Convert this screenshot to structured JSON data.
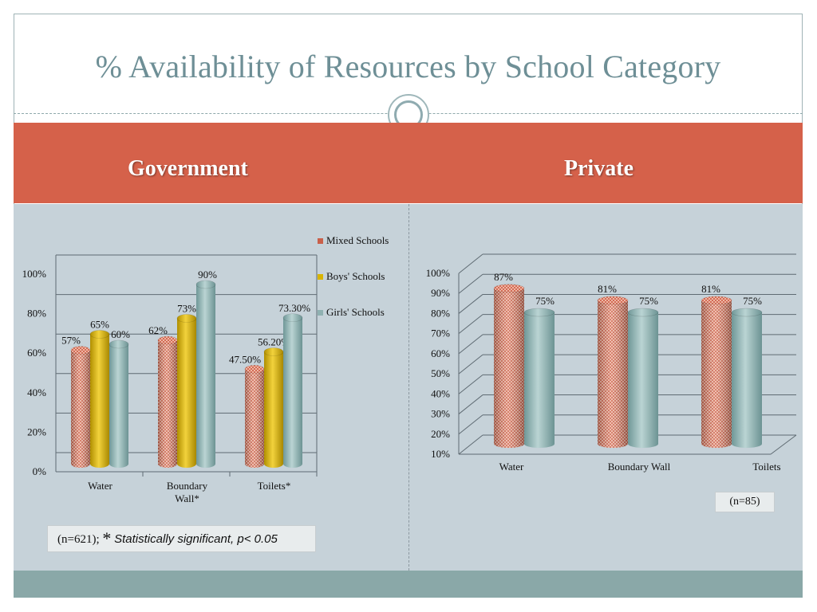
{
  "title": "% Availability of Resources by School Category",
  "sections": {
    "left": "Government",
    "right": "Private"
  },
  "notes": {
    "left_prefix": "(n=621);",
    "left_star": "*",
    "left_sig": "Statistically significant, p< 0.05",
    "right": "(n=85)"
  },
  "colors": {
    "band": "#d5614a",
    "mixed": "#c9604a",
    "boys": "#d8b400",
    "girls": "#8fb1b1"
  },
  "chart_data": [
    {
      "type": "bar",
      "categories": [
        "Water",
        "Boundary Wall*",
        "Toilets*"
      ],
      "category_lines": [
        [
          "Water"
        ],
        [
          "Boundary",
          "Wall*"
        ],
        [
          "Toilets*"
        ]
      ],
      "series": [
        {
          "name": "Mixed Schools",
          "values": [
            57,
            62,
            47.5
          ],
          "labels": [
            "57%",
            "62%",
            "47.50%"
          ]
        },
        {
          "name": "Boys' Schools",
          "values": [
            65,
            73,
            56.2
          ],
          "labels": [
            "65%",
            "73%",
            "56.20%"
          ]
        },
        {
          "name": "Girls' Schools",
          "values": [
            60,
            90,
            73.3
          ],
          "labels": [
            "60%",
            "90%",
            "73.30%"
          ]
        }
      ],
      "ylim": [
        0,
        100
      ],
      "yticks": [
        "0%",
        "20%",
        "40%",
        "60%",
        "80%",
        "100%"
      ],
      "legend": "right",
      "grid": true
    },
    {
      "type": "bar",
      "categories": [
        "Water",
        "Boundary Wall",
        "Toilets"
      ],
      "series": [
        {
          "values": [
            87,
            81,
            81
          ],
          "labels": [
            "87%",
            "81%",
            "81%"
          ]
        },
        {
          "values": [
            75,
            75,
            75
          ],
          "labels": [
            "75%",
            "75%",
            "75%"
          ]
        }
      ],
      "ylim": [
        10,
        100
      ],
      "yticks": [
        "10%",
        "20%",
        "30%",
        "40%",
        "50%",
        "60%",
        "70%",
        "80%",
        "90%",
        "100%"
      ],
      "grid": true
    }
  ]
}
